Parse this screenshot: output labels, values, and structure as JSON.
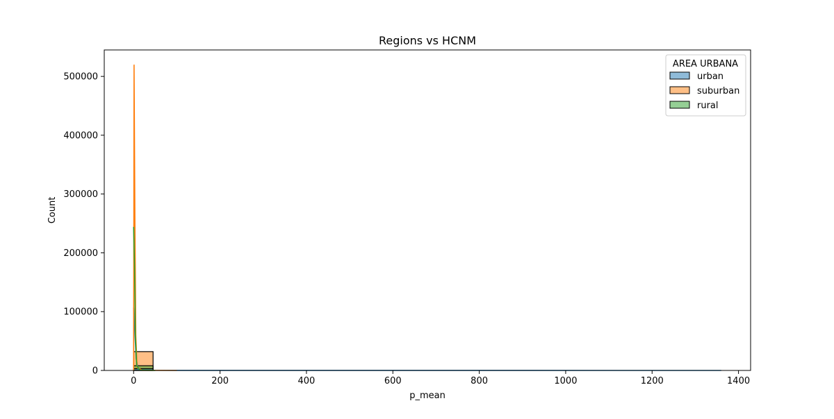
{
  "chart_data": {
    "type": "bar",
    "title": "Regions vs HCNM",
    "xlabel": "p_mean",
    "ylabel": "Count",
    "xlim": [
      -68,
      1428
    ],
    "ylim": [
      0,
      545000
    ],
    "xticks": [
      0,
      200,
      400,
      600,
      800,
      1000,
      1200,
      1400
    ],
    "yticks": [
      0,
      100000,
      200000,
      300000,
      400000,
      500000
    ],
    "grid": false,
    "legend": {
      "title": "AREA URBANA",
      "placement": "top-right",
      "entries": [
        "urban",
        "suburban",
        "rural"
      ]
    },
    "series": [
      {
        "name": "urban",
        "color": "#1f77b4",
        "bins": [
          {
            "x0": 0,
            "x1": 45,
            "count": 3000
          }
        ],
        "kde": [
          [
            0,
            107000
          ],
          [
            3,
            60000
          ],
          [
            6,
            20000
          ],
          [
            10,
            3000
          ],
          [
            20,
            300
          ],
          [
            100,
            50
          ],
          [
            1360,
            0
          ]
        ]
      },
      {
        "name": "suburban",
        "color": "#ff7f0e",
        "bins": [
          {
            "x0": 0,
            "x1": 45,
            "count": 32000
          }
        ],
        "kde": [
          [
            0,
            0
          ],
          [
            1,
            520000
          ],
          [
            3,
            250000
          ],
          [
            5,
            60000
          ],
          [
            8,
            5000
          ],
          [
            20,
            200
          ],
          [
            100,
            0
          ]
        ]
      },
      {
        "name": "rural",
        "color": "#2ca02c",
        "bins": [
          {
            "x0": 0,
            "x1": 45,
            "count": 8000
          }
        ],
        "kde": [
          [
            0,
            244000
          ],
          [
            2,
            180000
          ],
          [
            4,
            60000
          ],
          [
            7,
            8000
          ],
          [
            15,
            500
          ],
          [
            50,
            0
          ]
        ]
      }
    ]
  }
}
